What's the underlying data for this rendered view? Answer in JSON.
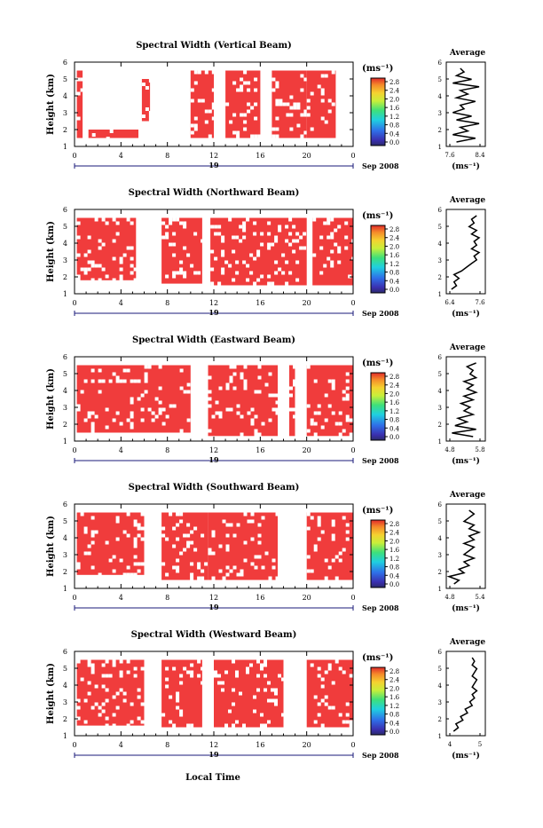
{
  "figure": {
    "xlabel_bottom": "Local Time",
    "date_label": "Sep 2008",
    "day_label": "19",
    "x_ticks": [
      "0",
      "4",
      "8",
      "12",
      "16",
      "20",
      "0"
    ],
    "y_ticks": [
      "1",
      "2",
      "3",
      "4",
      "5",
      "6"
    ],
    "ylabel": "Height (km)",
    "colorbar_unit": "(ms⁻¹)",
    "colorbar_ticks": [
      "2.8",
      "2.4",
      "2.0",
      "1.6",
      "1.2",
      "0.8",
      "0.4",
      "0.0"
    ],
    "colors": {
      "fill": "#f03c3c",
      "outline": "#000000",
      "avg_line": "#000000"
    },
    "avg_title": "Average",
    "avg_unit": "(ms⁻¹)"
  },
  "chart_data": [
    {
      "type": "heatmap",
      "title": "Spectral Width (Vertical Beam)",
      "xlim": [
        0,
        24
      ],
      "ylim": [
        1,
        6
      ],
      "blocks": [
        [
          0.2,
          0.7,
          1.5,
          5.5
        ],
        [
          1.2,
          5.5,
          1.5,
          2.0
        ],
        [
          5.8,
          6.5,
          2.5,
          5.0
        ],
        [
          10,
          12,
          1.5,
          5.5
        ],
        [
          13,
          16,
          1.5,
          5.5
        ],
        [
          17,
          20,
          1.5,
          5.5
        ],
        [
          20,
          22.5,
          1.5,
          5.5
        ]
      ],
      "avg": {
        "xticks": [
          "7.6",
          "8.4"
        ],
        "xlim": [
          7.6,
          8.4
        ],
        "profile": [
          7.8,
          8.3,
          7.7,
          8.1,
          7.9,
          8.4,
          7.8,
          8.2,
          7.7,
          8.0,
          7.9,
          8.3,
          7.8,
          8.1,
          7.9,
          8.4,
          7.7,
          8.2,
          7.8,
          8.0,
          7.9
        ]
      }
    },
    {
      "type": "heatmap",
      "title": "Spectral Width (Northward Beam)",
      "xlim": [
        0,
        24
      ],
      "ylim": [
        1,
        6
      ],
      "blocks": [
        [
          0.2,
          5.3,
          1.8,
          5.5
        ],
        [
          7.5,
          11,
          1.6,
          5.5
        ],
        [
          11.7,
          20,
          1.5,
          5.5
        ],
        [
          20.5,
          24,
          1.5,
          5.5
        ]
      ],
      "avg": {
        "xticks": [
          "6.4",
          "7.6"
        ],
        "xlim": [
          6.4,
          7.6
        ],
        "profile": [
          6.5,
          6.7,
          6.6,
          6.8,
          6.6,
          6.9,
          7.1,
          7.3,
          7.5,
          7.4,
          7.6,
          7.3,
          7.5,
          7.4,
          7.6,
          7.3,
          7.5,
          7.2,
          7.4,
          7.3,
          7.5
        ]
      }
    },
    {
      "type": "heatmap",
      "title": "Spectral Width (Eastward Beam)",
      "xlim": [
        0,
        24
      ],
      "ylim": [
        1,
        6
      ],
      "blocks": [
        [
          0.2,
          10,
          1.5,
          5.5
        ],
        [
          11.5,
          17.5,
          1.3,
          5.5
        ],
        [
          18.5,
          19,
          1.3,
          5.5
        ],
        [
          20,
          24,
          1.3,
          5.5
        ]
      ],
      "avg": {
        "xticks": [
          "4.8",
          "5.8"
        ],
        "xlim": [
          4.8,
          5.8
        ],
        "profile": [
          5.6,
          4.9,
          5.7,
          5.0,
          5.4,
          5.1,
          5.6,
          5.3,
          5.5,
          5.2,
          5.6,
          5.3,
          5.7,
          5.4,
          5.6,
          5.3,
          5.7,
          5.5,
          5.6,
          5.4,
          5.7
        ]
      }
    },
    {
      "type": "heatmap",
      "title": "Spectral Width (Southward Beam)",
      "xlim": [
        0,
        24
      ],
      "ylim": [
        1,
        6
      ],
      "blocks": [
        [
          0.2,
          6,
          1.8,
          5.5
        ],
        [
          7.5,
          11.5,
          1.5,
          5.5
        ],
        [
          11.5,
          17.5,
          1.5,
          5.5
        ],
        [
          20,
          24,
          1.5,
          5.5
        ]
      ],
      "avg": {
        "xticks": [
          "4.8",
          "5.4"
        ],
        "xlim": [
          4.8,
          5.4
        ],
        "profile": [
          4.9,
          5.0,
          4.8,
          5.1,
          5.0,
          5.2,
          5.1,
          5.3,
          5.1,
          5.2,
          5.3,
          5.1,
          5.3,
          5.2,
          5.4,
          5.2,
          5.3,
          5.1,
          5.2,
          5.3,
          5.2
        ]
      }
    },
    {
      "type": "heatmap",
      "title": "Spectral Width (Westward Beam)",
      "xlim": [
        0,
        24
      ],
      "ylim": [
        1,
        6
      ],
      "blocks": [
        [
          0.2,
          6,
          1.6,
          5.5
        ],
        [
          7.5,
          11,
          1.5,
          5.5
        ],
        [
          12,
          18,
          1.5,
          5.5
        ],
        [
          20,
          24,
          1.5,
          5.5
        ]
      ],
      "avg": {
        "xticks": [
          "4",
          "5"
        ],
        "xlim": [
          4,
          5.3
        ],
        "profile": [
          4.2,
          4.4,
          4.3,
          4.6,
          4.5,
          4.8,
          4.7,
          5.0,
          4.9,
          5.1,
          5.0,
          5.2,
          5.0,
          5.1,
          5.2,
          5.0,
          5.1,
          5.2,
          5.0,
          5.1,
          5.0
        ]
      }
    }
  ]
}
